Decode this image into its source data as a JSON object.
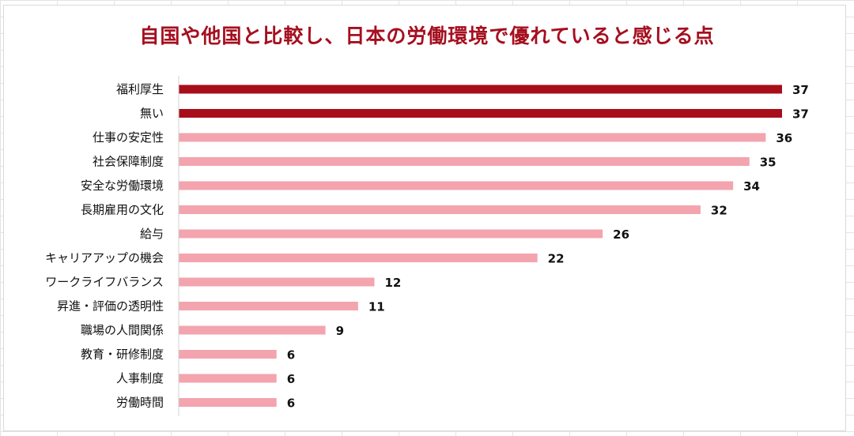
{
  "chart_data": {
    "type": "bar",
    "orientation": "horizontal",
    "title": "自国や他国と比較し、日本の労働環境で優れていると感じる点",
    "categories": [
      "福利厚生",
      "無い",
      "仕事の安定性",
      "社会保障制度",
      "安全な労働環境",
      "長期雇用の文化",
      "給与",
      "キャリアアップの機会",
      "ワークライフバランス",
      "昇進・評価の透明性",
      "職場の人間関係",
      "教育・研修制度",
      "人事制度",
      "労働時間"
    ],
    "values": [
      37,
      37,
      36,
      35,
      34,
      32,
      26,
      22,
      12,
      11,
      9,
      6,
      6,
      6
    ],
    "highlighted": [
      true,
      true,
      false,
      false,
      false,
      false,
      false,
      false,
      false,
      false,
      false,
      false,
      false,
      false
    ],
    "xlim": [
      0,
      37
    ],
    "grid": false,
    "legend": "none",
    "colors": {
      "highlight": "#a80e1a",
      "normal": "#f3a4ae",
      "title": "#a50f1f",
      "axis": "#d0d0d0"
    }
  }
}
